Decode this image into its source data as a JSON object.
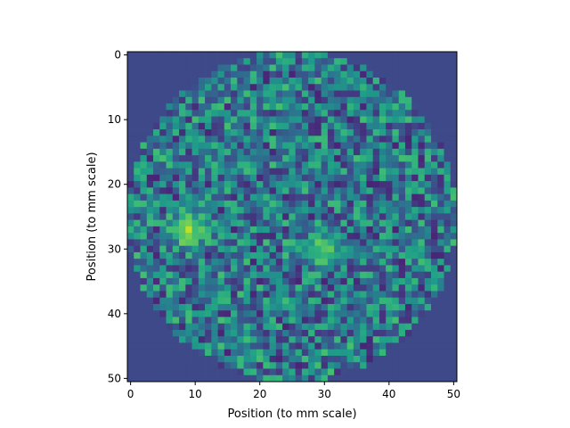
{
  "chart_data": {
    "type": "heatmap",
    "title": "",
    "xlabel": "Position (to mm scale)",
    "ylabel": "Position (to mm scale)",
    "grid": false,
    "legend": "none",
    "origin": "upper",
    "colormap": "viridis",
    "x_range": [
      -0.5,
      50.5
    ],
    "y_range": [
      50.5,
      -0.5
    ],
    "xticks": [
      0,
      10,
      20,
      30,
      40,
      50
    ],
    "yticks": [
      0,
      10,
      20,
      30,
      40,
      50
    ],
    "grid_size": 51,
    "value_range": [
      0,
      1
    ],
    "outside_value": 0.22,
    "disc": {
      "center_x": 25,
      "center_y": 25,
      "radius": 25.5
    },
    "hotspots": [
      {
        "center_x": 9,
        "center_y": 27,
        "radius": 4.5,
        "peak": 0.92
      },
      {
        "center_x": 30,
        "center_y": 30,
        "radius": 4.5,
        "peak": 0.82
      }
    ],
    "background_mean": 0.4,
    "background_spread": 0.3
  }
}
